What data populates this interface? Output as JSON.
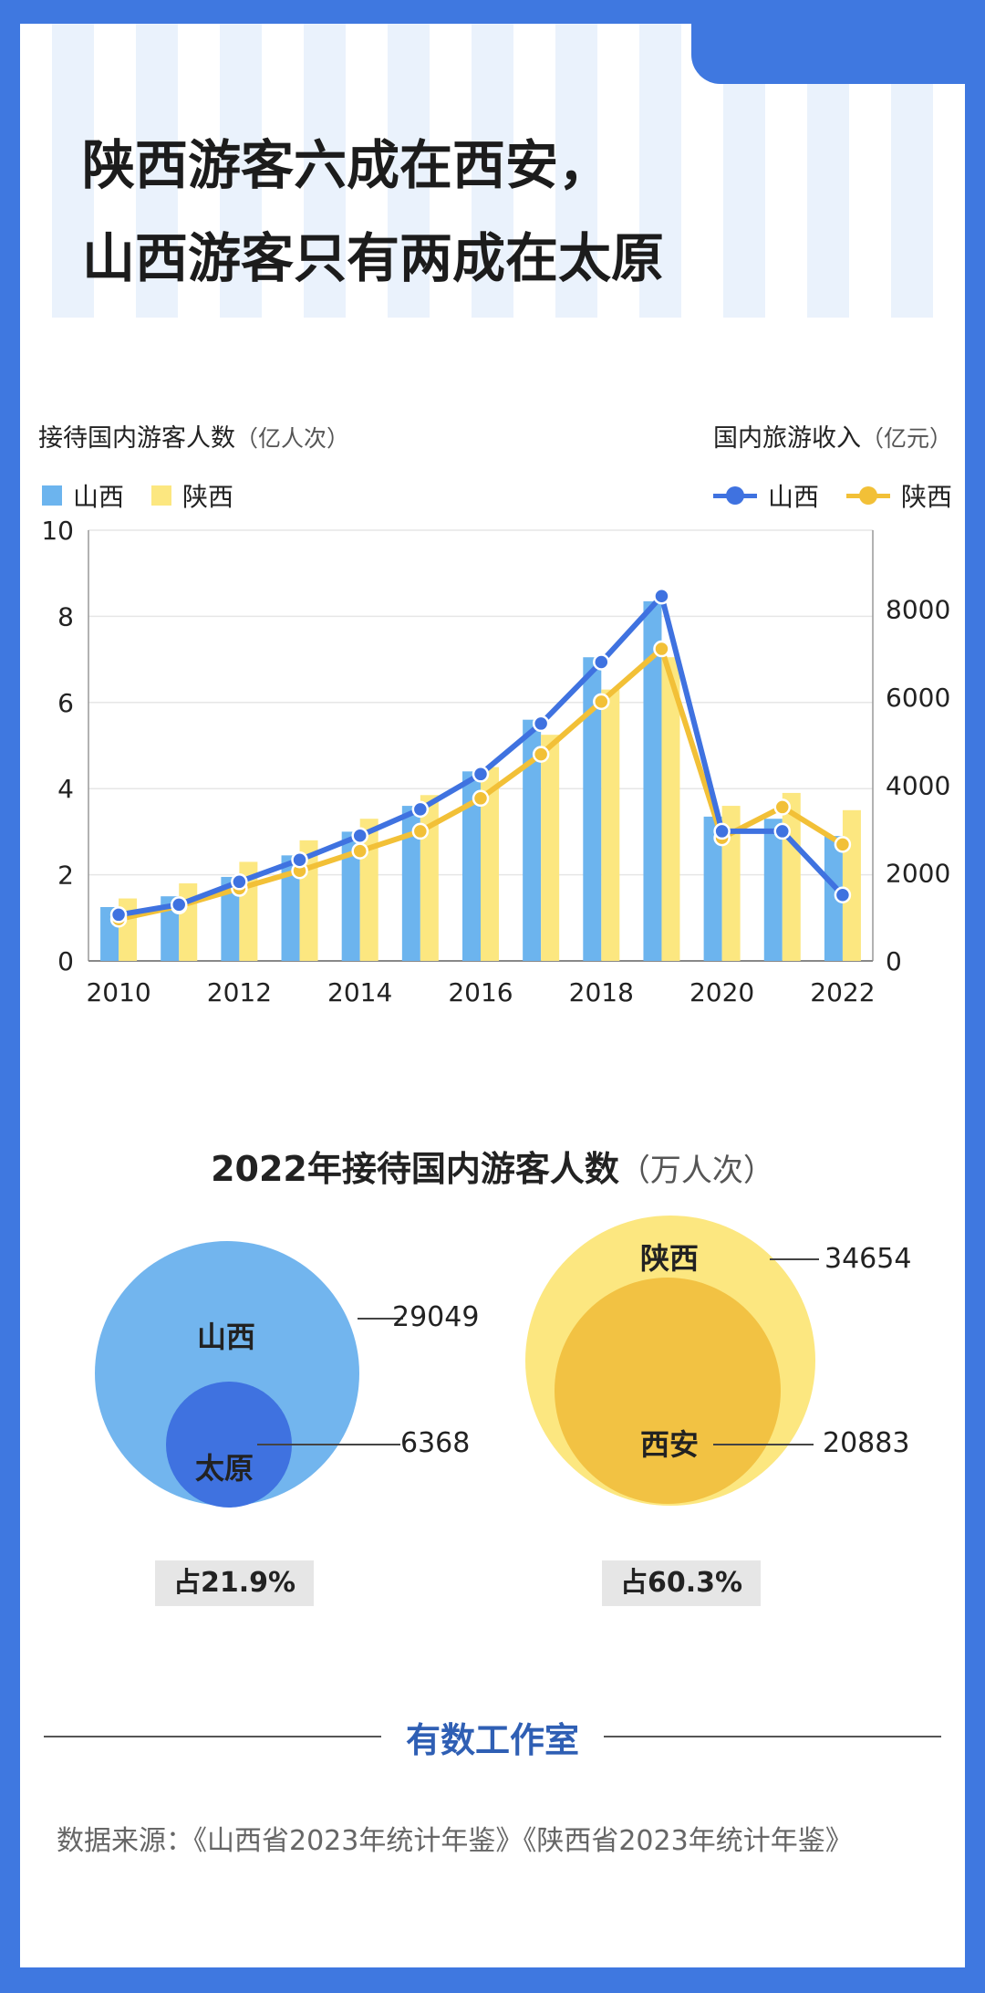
{
  "title": {
    "line1": "陕西游客六成在西安，",
    "line2": "山西游客只有两成在太原"
  },
  "chart1": {
    "left_axis_label": "接待国内游客人数",
    "left_axis_unit": "（亿人次）",
    "right_axis_label": "国内旅游收入",
    "right_axis_unit": "（亿元）",
    "bar_legend": [
      "山西",
      "陕西"
    ],
    "line_legend": [
      "山西",
      "陕西"
    ]
  },
  "chart_data": [
    {
      "type": "bar+line",
      "categories": [
        "2010",
        "2011",
        "2012",
        "2013",
        "2014",
        "2015",
        "2016",
        "2017",
        "2018",
        "2019",
        "2020",
        "2021",
        "2022"
      ],
      "x_tick_labels": [
        "2010",
        "2012",
        "2014",
        "2016",
        "2018",
        "2020",
        "2022"
      ],
      "left_axis": {
        "label": "接待国内游客人数（亿人次）",
        "ylim": [
          0,
          10
        ],
        "ticks": [
          "0",
          "2",
          "4",
          "6",
          "8",
          "10"
        ]
      },
      "right_axis": {
        "label": "国内旅游收入（亿元）",
        "ylim": [
          0,
          9800
        ],
        "ticks": [
          "0",
          "2000",
          "4000",
          "6000",
          "8000"
        ]
      },
      "bar_series": [
        {
          "name": "山西",
          "color": "#6cb4ee",
          "values": [
            1.25,
            1.5,
            1.95,
            2.45,
            3.0,
            3.6,
            4.4,
            5.6,
            7.05,
            8.35,
            3.35,
            3.3,
            2.9
          ]
        },
        {
          "name": "陕西",
          "color": "#fce780",
          "values": [
            1.45,
            1.8,
            2.3,
            2.8,
            3.3,
            3.85,
            4.5,
            5.25,
            6.3,
            7.05,
            3.6,
            3.9,
            3.5
          ]
        }
      ],
      "line_series": [
        {
          "name": "山西",
          "color": "#3f72e0",
          "values": [
            1050,
            1280,
            1800,
            2300,
            2850,
            3450,
            4250,
            5400,
            6800,
            8300,
            2950,
            2950,
            1500
          ]
        },
        {
          "name": "陕西",
          "color": "#f2c037",
          "values": [
            950,
            1250,
            1650,
            2050,
            2500,
            2950,
            3700,
            4700,
            5900,
            7100,
            2800,
            3500,
            2650
          ]
        }
      ]
    },
    {
      "type": "nested-circles",
      "title": "2022年接待国内游客人数",
      "unit": "（万人次）",
      "groups": [
        {
          "outer": {
            "name": "山西",
            "value": 29049
          },
          "inner": {
            "name": "太原",
            "value": 6368
          },
          "share": "占21.9%",
          "outer_color": "#72b5ee",
          "inner_color": "#3f72e0"
        },
        {
          "outer": {
            "name": "陕西",
            "value": 34654
          },
          "inner": {
            "name": "西安",
            "value": 20883
          },
          "share": "占60.3%",
          "outer_color": "#fce780",
          "inner_color": "#f2c243"
        }
      ]
    }
  ],
  "footer": {
    "brand": "有数工作室",
    "source": "数据来源：《山西省2023年统计年鉴》《陕西省2023年统计年鉴》"
  }
}
